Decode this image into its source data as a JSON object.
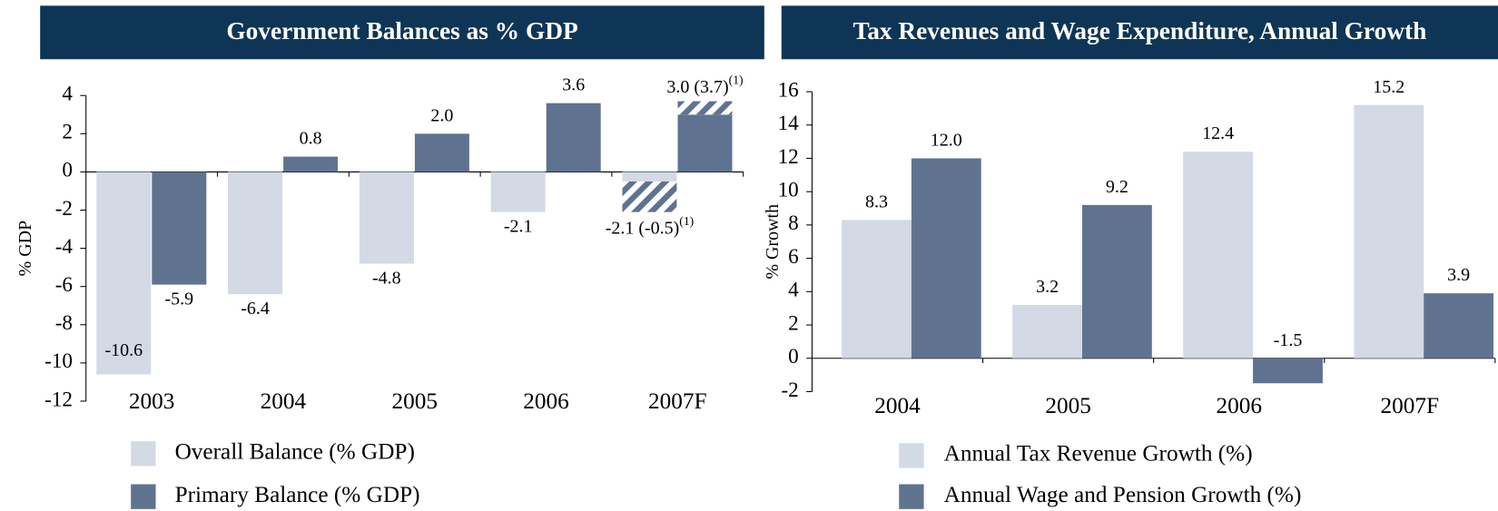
{
  "chart_data": [
    {
      "type": "bar",
      "title": "Government Balances as % GDP",
      "ylabel": "% GDP",
      "categories": [
        "2003",
        "2004",
        "2005",
        "2006",
        "2007F"
      ],
      "note_marker": "(1)",
      "series": [
        {
          "name": "Overall Balance (% GDP)",
          "color": "#d3dae5",
          "values": [
            -10.6,
            -6.4,
            -4.8,
            -2.1,
            -2.1
          ],
          "value_labels": [
            "-10.6",
            "-6.4",
            "-4.8",
            "-2.1",
            "-2.1"
          ],
          "alt_values": [
            null,
            null,
            null,
            null,
            -0.5
          ],
          "alt_value_labels": [
            null,
            null,
            null,
            null,
            "(-0.5)"
          ]
        },
        {
          "name": "Primary Balance (% GDP)",
          "color": "#5f7390",
          "values": [
            -5.9,
            0.8,
            2.0,
            3.6,
            3.0
          ],
          "value_labels": [
            "-5.9",
            "0.8",
            "2.0",
            "3.6",
            "3.0"
          ],
          "alt_values": [
            null,
            null,
            null,
            null,
            3.7
          ],
          "alt_value_labels": [
            null,
            null,
            null,
            null,
            "(3.7)"
          ]
        }
      ],
      "ylim": [
        -12,
        4
      ],
      "yticks": [
        -12,
        -10,
        -8,
        -6,
        -4,
        -2,
        0,
        2,
        4
      ],
      "grid": false
    },
    {
      "type": "bar",
      "title": "Tax Revenues and Wage Expenditure, Annual Growth",
      "ylabel": "% Growth",
      "categories": [
        "2004",
        "2005",
        "2006",
        "2007F"
      ],
      "series": [
        {
          "name": "Annual Tax Revenue Growth (%)",
          "color": "#d3dae5",
          "values": [
            8.3,
            3.2,
            12.4,
            15.2
          ],
          "value_labels": [
            "8.3",
            "3.2",
            "12.4",
            "15.2"
          ]
        },
        {
          "name": "Annual Wage and Pension Growth (%)",
          "color": "#5f7390",
          "values": [
            12.0,
            9.2,
            -1.5,
            3.9
          ],
          "value_labels": [
            "12.0",
            "9.2",
            "-1.5",
            "3.9"
          ]
        }
      ],
      "ylim": [
        -2,
        16
      ],
      "yticks": [
        -2,
        0,
        2,
        4,
        6,
        8,
        10,
        12,
        14,
        16
      ],
      "grid": false
    }
  ]
}
